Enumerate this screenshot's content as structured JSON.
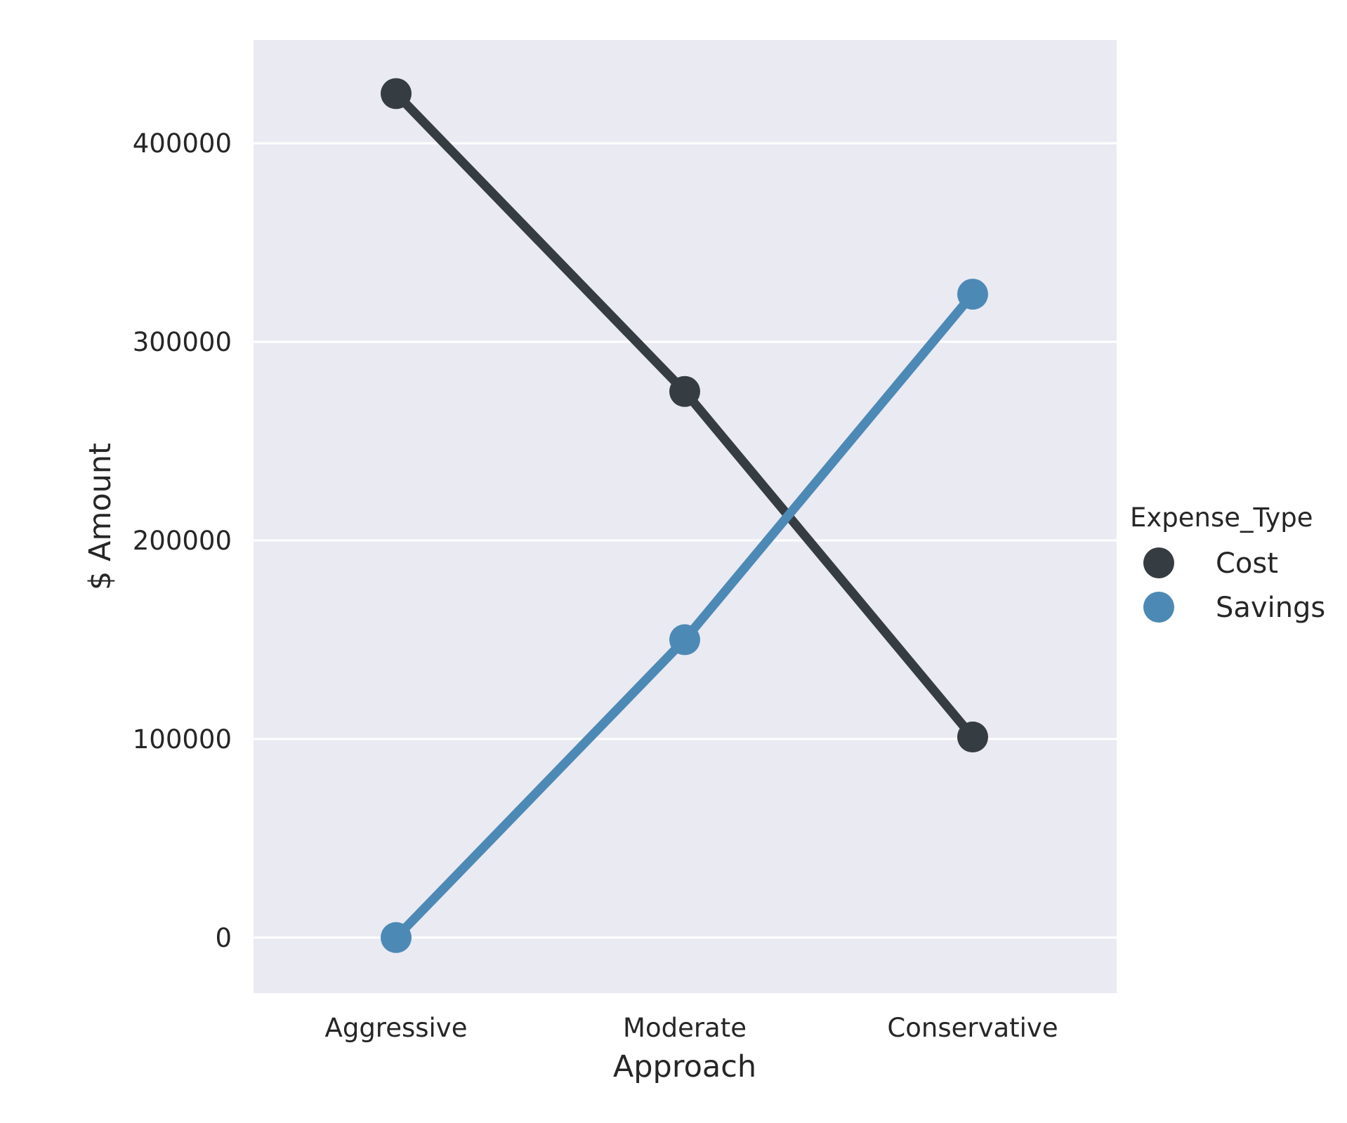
{
  "chart_data": {
    "type": "line",
    "categories": [
      "Aggressive",
      "Moderate",
      "Conservative"
    ],
    "series": [
      {
        "name": "Cost",
        "values": [
          425000,
          275000,
          101000
        ],
        "color": "#353c42"
      },
      {
        "name": "Savings",
        "values": [
          0,
          150000,
          324000
        ],
        "color": "#4d89b5"
      }
    ],
    "xlabel": "Approach",
    "ylabel": "$ Amount",
    "ylim": [
      -28000,
      452000
    ],
    "yticks": [
      0,
      100000,
      200000,
      300000,
      400000
    ],
    "ytick_labels": [
      "0",
      "100000",
      "200000",
      "300000",
      "400000"
    ],
    "grid": "horizontal",
    "legend": {
      "title": "Expense_Type",
      "placement": "right"
    },
    "style": {
      "plot_background": "#eaeaf2",
      "grid_color": "#ffffff",
      "text_color": "#262626"
    }
  }
}
